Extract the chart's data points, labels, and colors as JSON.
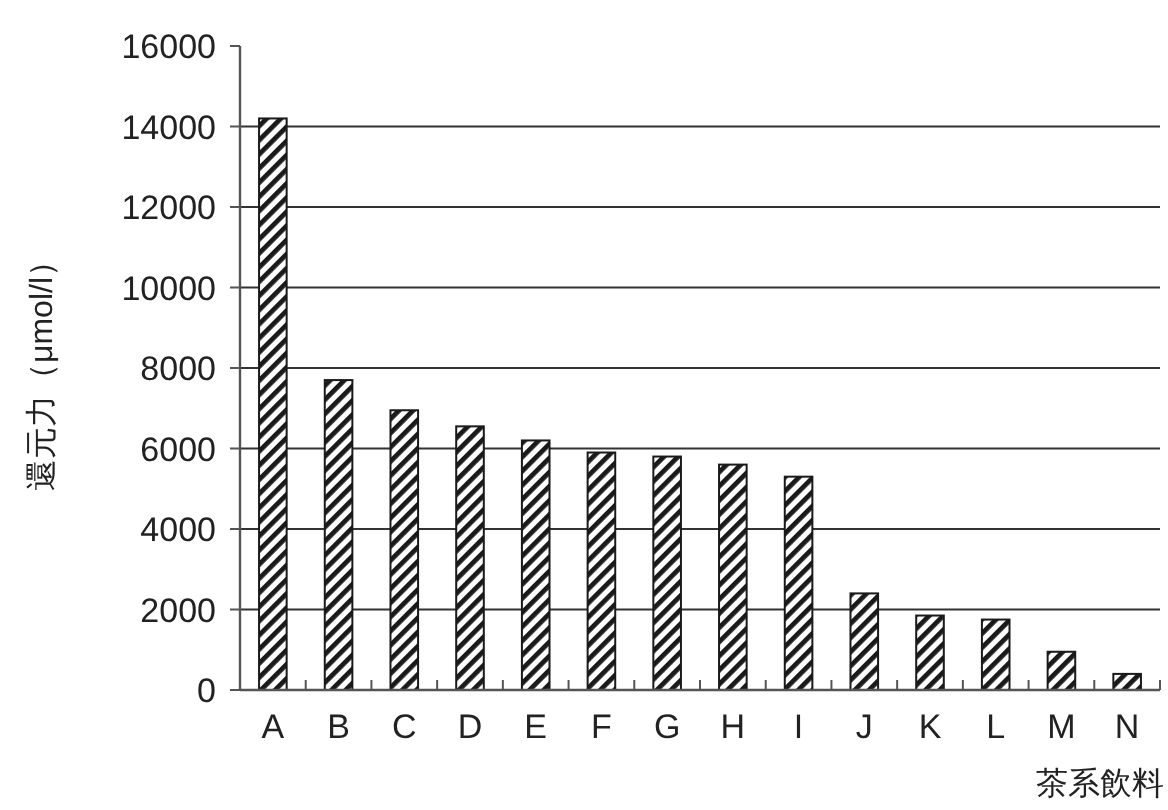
{
  "chart_data": {
    "type": "bar",
    "xlabel": "茶系飲料",
    "ylabel": "還元力（μmol/l）",
    "categories": [
      "A",
      "B",
      "C",
      "D",
      "E",
      "F",
      "G",
      "H",
      "I",
      "J",
      "K",
      "L",
      "M",
      "N"
    ],
    "values": [
      14200,
      7700,
      6950,
      6550,
      6200,
      5900,
      5800,
      5600,
      5300,
      2400,
      1850,
      1750,
      950,
      400
    ],
    "color": "#1a1a1a",
    "ylim": [
      0,
      16000
    ],
    "yticks": [
      0,
      2000,
      4000,
      6000,
      8000,
      10000,
      12000,
      14000,
      16000
    ],
    "grid": "y"
  }
}
